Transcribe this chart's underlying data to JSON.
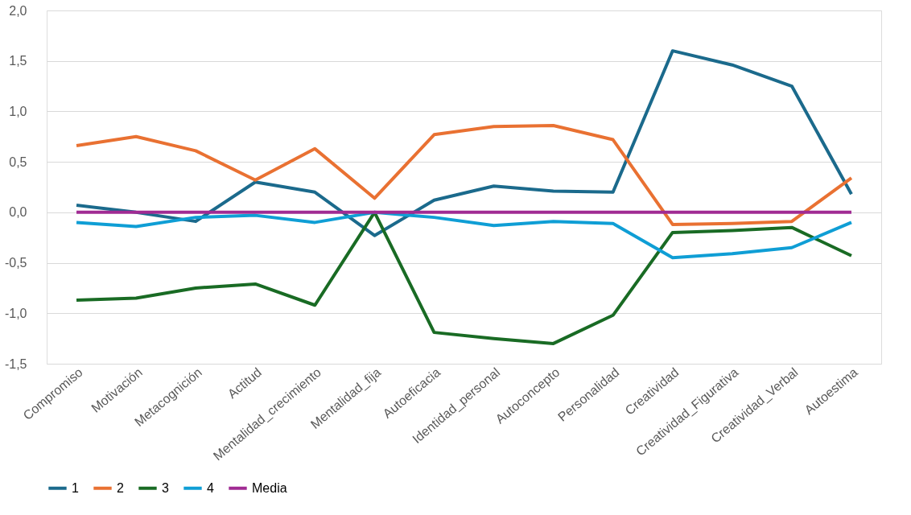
{
  "chart_data": {
    "type": "line",
    "categories": [
      "Compromiso",
      "Motivación",
      "Metacognición",
      "Actitud",
      "Mentalidad_crecimiento",
      "Mentalidad_fija",
      "Autoeficacia",
      "Identidad_personal",
      "Autoconcepto",
      "Personalidad",
      "Creatividad",
      "Creatividad_Figurativa",
      "Creatividad_Verbal",
      "Autoestima"
    ],
    "series": [
      {
        "name": "1",
        "color": "#1b6a8c",
        "values": [
          0.07,
          0.0,
          -0.09,
          0.3,
          0.2,
          -0.23,
          0.12,
          0.26,
          0.21,
          0.2,
          1.6,
          1.46,
          1.25,
          0.18
        ]
      },
      {
        "name": "2",
        "color": "#e97132",
        "values": [
          0.66,
          0.75,
          0.61,
          0.32,
          0.63,
          0.14,
          0.77,
          0.85,
          0.86,
          0.72,
          -0.12,
          -0.11,
          -0.09,
          0.34
        ]
      },
      {
        "name": "3",
        "color": "#196b24",
        "values": [
          -0.87,
          -0.85,
          -0.75,
          -0.71,
          -0.92,
          0.0,
          -1.19,
          -1.25,
          -1.3,
          -1.02,
          -0.2,
          -0.18,
          -0.15,
          -0.43
        ]
      },
      {
        "name": "4",
        "color": "#0f9ed5",
        "values": [
          -0.1,
          -0.14,
          -0.05,
          -0.03,
          -0.1,
          0.0,
          -0.05,
          -0.13,
          -0.09,
          -0.11,
          -0.45,
          -0.41,
          -0.35,
          -0.1
        ]
      },
      {
        "name": "Media",
        "color": "#a02b93",
        "values": [
          0,
          0,
          0,
          0,
          0,
          0,
          0,
          0,
          0,
          0,
          0,
          0,
          0,
          0
        ]
      }
    ],
    "ylim": [
      -1.5,
      2.0
    ],
    "yticks": [
      {
        "value": -1.5,
        "label": "-1,5"
      },
      {
        "value": -1.0,
        "label": "-1,0"
      },
      {
        "value": -0.5,
        "label": "-0,5"
      },
      {
        "value": 0.0,
        "label": "0,0"
      },
      {
        "value": 0.5,
        "label": "0,5"
      },
      {
        "value": 1.0,
        "label": "1,0"
      },
      {
        "value": 1.5,
        "label": "1,5"
      },
      {
        "value": 2.0,
        "label": "2,0"
      }
    ],
    "grid": "y",
    "legend": "bottom",
    "marker": "none",
    "line_style": "solid"
  }
}
